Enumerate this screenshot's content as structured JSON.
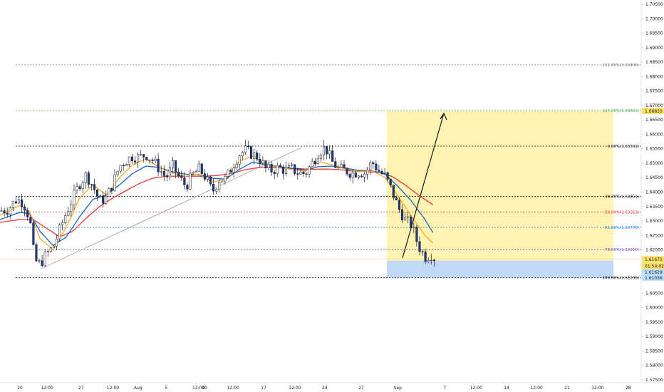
{
  "chart_data": {
    "type": "candlestick",
    "ylim": [
      1.575,
      1.705
    ],
    "y_ticks": [
      "1.70500",
      "1.70000",
      "1.69500",
      "1.69000",
      "1.68500",
      "1.68000",
      "1.67500",
      "1.67000",
      "1.66500",
      "1.66000",
      "1.65500",
      "1.65000",
      "1.64500",
      "1.64000",
      "1.63500",
      "1.63000",
      "1.62500",
      "1.62000",
      "1.61500",
      "1.61000",
      "1.60500",
      "1.60000",
      "1.59500",
      "1.59000",
      "1.58500",
      "1.58000",
      "1.57500"
    ],
    "x_ticks": [
      {
        "label": "20",
        "x": 0.03
      },
      {
        "label": "12:00",
        "x": 0.071
      },
      {
        "label": "27",
        "x": 0.122
      },
      {
        "label": "12:00",
        "x": 0.17
      },
      {
        "label": "Aug",
        "x": 0.208
      },
      {
        "label": "5",
        "x": 0.25
      },
      {
        "label": "12:00",
        "x": 0.299
      },
      {
        "label": "10",
        "x": 0.308
      },
      {
        "label": "12:00",
        "x": 0.351
      },
      {
        "label": "17",
        "x": 0.397
      },
      {
        "label": "12:00",
        "x": 0.444
      },
      {
        "label": "24",
        "x": 0.489
      },
      {
        "label": "27",
        "x": 0.544
      },
      {
        "label": "Sep",
        "x": 0.599
      },
      {
        "label": "7",
        "x": 0.67
      },
      {
        "label": "12:00",
        "x": 0.717
      },
      {
        "label": "14",
        "x": 0.763
      },
      {
        "label": "12:00",
        "x": 0.808
      },
      {
        "label": "21",
        "x": 0.854
      },
      {
        "label": "12:00",
        "x": 0.9
      },
      {
        "label": "28",
        "x": 0.946
      }
    ],
    "fib_levels": [
      {
        "label": "161.80%(1.68406)",
        "value": 1.68406,
        "color": "#787b86"
      },
      {
        "label": "127.00%(1.66821)",
        "value": 1.66821,
        "color": "#4caf50"
      },
      {
        "label": "0.00%(1.65591)",
        "value": 1.65591,
        "color": "#131722"
      },
      {
        "label": "38.20%(1.63851)",
        "value": 1.63851,
        "color": "#131722"
      },
      {
        "label": "50.00%(1.63313)",
        "value": 1.63313,
        "color": "#e53935"
      },
      {
        "label": "61.80%(1.62776)",
        "value": 1.62776,
        "color": "#1e88e5"
      },
      {
        "label": "78.60%(1.62010)",
        "value": 1.6201,
        "color": "#7e57c2"
      },
      {
        "label": "100.00%(1.61035)",
        "value": 1.61035,
        "color": "#131722"
      }
    ],
    "price_badges": [
      {
        "label": "1.66810",
        "value": 1.6681,
        "bg": "#ffe066"
      },
      {
        "label": "1.61675",
        "value": 1.61675,
        "bg": "#ffe066"
      },
      {
        "label": "01:54:02",
        "value": 1.61445,
        "bg": "#ffe066"
      },
      {
        "label": "1.61629",
        "value": 1.61225,
        "bg": "#bbdefb"
      },
      {
        "label": "1.61036",
        "value": 1.61036,
        "bg": "#bbdefb"
      }
    ],
    "projection": {
      "entry": 1.61629,
      "target": 1.6681,
      "stop": 1.61036
    },
    "candle_profile": [
      [
        0.0,
        1.6335
      ],
      [
        0.012,
        1.634
      ],
      [
        0.025,
        1.6375
      ],
      [
        0.035,
        1.6365
      ],
      [
        0.045,
        1.6305
      ],
      [
        0.052,
        1.6165
      ],
      [
        0.06,
        1.615
      ],
      [
        0.07,
        1.6185
      ],
      [
        0.08,
        1.621
      ],
      [
        0.09,
        1.627
      ],
      [
        0.1,
        1.633
      ],
      [
        0.11,
        1.638
      ],
      [
        0.12,
        1.643
      ],
      [
        0.13,
        1.646
      ],
      [
        0.14,
        1.642
      ],
      [
        0.15,
        1.637
      ],
      [
        0.16,
        1.638
      ],
      [
        0.17,
        1.643
      ],
      [
        0.18,
        1.649
      ],
      [
        0.19,
        1.651
      ],
      [
        0.2,
        1.6525
      ],
      [
        0.21,
        1.652
      ],
      [
        0.22,
        1.653
      ],
      [
        0.23,
        1.651
      ],
      [
        0.24,
        1.648
      ],
      [
        0.25,
        1.645
      ],
      [
        0.26,
        1.649
      ],
      [
        0.27,
        1.645
      ],
      [
        0.28,
        1.642
      ],
      [
        0.29,
        1.646
      ],
      [
        0.3,
        1.648
      ],
      [
        0.31,
        1.645
      ],
      [
        0.32,
        1.64
      ],
      [
        0.33,
        1.6445
      ],
      [
        0.34,
        1.6445
      ],
      [
        0.35,
        1.649
      ],
      [
        0.36,
        1.653
      ],
      [
        0.37,
        1.6545
      ],
      [
        0.38,
        1.653
      ],
      [
        0.39,
        1.652
      ],
      [
        0.4,
        1.648
      ],
      [
        0.41,
        1.6475
      ],
      [
        0.42,
        1.6485
      ],
      [
        0.43,
        1.6475
      ],
      [
        0.44,
        1.648
      ],
      [
        0.45,
        1.6465
      ],
      [
        0.46,
        1.6465
      ],
      [
        0.47,
        1.65
      ],
      [
        0.48,
        1.654
      ],
      [
        0.49,
        1.6555
      ],
      [
        0.5,
        1.6505
      ],
      [
        0.51,
        1.648
      ],
      [
        0.52,
        1.6475
      ],
      [
        0.53,
        1.6465
      ],
      [
        0.54,
        1.647
      ],
      [
        0.55,
        1.6465
      ],
      [
        0.56,
        1.6505
      ],
      [
        0.57,
        1.6475
      ],
      [
        0.58,
        1.6455
      ],
      [
        0.59,
        1.6405
      ],
      [
        0.6,
        1.6345
      ],
      [
        0.61,
        1.6305
      ],
      [
        0.62,
        1.6285
      ],
      [
        0.63,
        1.6215
      ],
      [
        0.64,
        1.6175
      ],
      [
        0.65,
        1.6185
      ],
      [
        0.656,
        1.6165
      ]
    ],
    "ma_fast_profile": [
      [
        0.0,
        1.632
      ],
      [
        0.03,
        1.6355
      ],
      [
        0.045,
        1.633
      ],
      [
        0.06,
        1.624
      ],
      [
        0.08,
        1.62
      ],
      [
        0.1,
        1.628
      ],
      [
        0.12,
        1.638
      ],
      [
        0.14,
        1.6425
      ],
      [
        0.16,
        1.639
      ],
      [
        0.18,
        1.645
      ],
      [
        0.2,
        1.6495
      ],
      [
        0.22,
        1.6515
      ],
      [
        0.24,
        1.6485
      ],
      [
        0.26,
        1.6465
      ],
      [
        0.28,
        1.6455
      ],
      [
        0.3,
        1.6462
      ],
      [
        0.32,
        1.6435
      ],
      [
        0.34,
        1.6445
      ],
      [
        0.36,
        1.6505
      ],
      [
        0.38,
        1.6525
      ],
      [
        0.4,
        1.6495
      ],
      [
        0.42,
        1.6485
      ],
      [
        0.44,
        1.6478
      ],
      [
        0.46,
        1.6472
      ],
      [
        0.48,
        1.6505
      ],
      [
        0.5,
        1.6495
      ],
      [
        0.52,
        1.648
      ],
      [
        0.54,
        1.647
      ],
      [
        0.56,
        1.6475
      ],
      [
        0.58,
        1.645
      ],
      [
        0.6,
        1.6385
      ],
      [
        0.62,
        1.6315
      ],
      [
        0.64,
        1.625
      ],
      [
        0.656,
        1.6215
      ]
    ],
    "ma_mid_profile": [
      [
        0.0,
        1.6305
      ],
      [
        0.03,
        1.633
      ],
      [
        0.045,
        1.6325
      ],
      [
        0.06,
        1.6265
      ],
      [
        0.08,
        1.6215
      ],
      [
        0.1,
        1.6245
      ],
      [
        0.12,
        1.6315
      ],
      [
        0.14,
        1.6375
      ],
      [
        0.16,
        1.639
      ],
      [
        0.18,
        1.6425
      ],
      [
        0.2,
        1.6465
      ],
      [
        0.22,
        1.649
      ],
      [
        0.24,
        1.6485
      ],
      [
        0.26,
        1.647
      ],
      [
        0.28,
        1.6462
      ],
      [
        0.3,
        1.646
      ],
      [
        0.32,
        1.6448
      ],
      [
        0.34,
        1.6445
      ],
      [
        0.36,
        1.6478
      ],
      [
        0.38,
        1.6503
      ],
      [
        0.4,
        1.6495
      ],
      [
        0.42,
        1.6488
      ],
      [
        0.44,
        1.6482
      ],
      [
        0.46,
        1.6476
      ],
      [
        0.48,
        1.6488
      ],
      [
        0.5,
        1.649
      ],
      [
        0.52,
        1.6483
      ],
      [
        0.54,
        1.6475
      ],
      [
        0.56,
        1.6474
      ],
      [
        0.58,
        1.6462
      ],
      [
        0.6,
        1.6418
      ],
      [
        0.62,
        1.6368
      ],
      [
        0.64,
        1.6305
      ],
      [
        0.656,
        1.6245
      ]
    ],
    "ma_slow_profile": [
      [
        0.0,
        1.6295
      ],
      [
        0.03,
        1.6305
      ],
      [
        0.05,
        1.6305
      ],
      [
        0.07,
        1.6275
      ],
      [
        0.09,
        1.6245
      ],
      [
        0.11,
        1.6265
      ],
      [
        0.13,
        1.631
      ],
      [
        0.15,
        1.635
      ],
      [
        0.17,
        1.638
      ],
      [
        0.19,
        1.6405
      ],
      [
        0.21,
        1.643
      ],
      [
        0.23,
        1.6448
      ],
      [
        0.25,
        1.6455
      ],
      [
        0.27,
        1.6455
      ],
      [
        0.29,
        1.6455
      ],
      [
        0.31,
        1.6455
      ],
      [
        0.33,
        1.6458
      ],
      [
        0.35,
        1.6465
      ],
      [
        0.37,
        1.6478
      ],
      [
        0.39,
        1.6485
      ],
      [
        0.41,
        1.6485
      ],
      [
        0.43,
        1.6483
      ],
      [
        0.45,
        1.6481
      ],
      [
        0.47,
        1.6479
      ],
      [
        0.49,
        1.648
      ],
      [
        0.51,
        1.6478
      ],
      [
        0.53,
        1.6473
      ],
      [
        0.55,
        1.6471
      ],
      [
        0.57,
        1.6468
      ],
      [
        0.59,
        1.6455
      ],
      [
        0.61,
        1.6425
      ],
      [
        0.63,
        1.639
      ],
      [
        0.656,
        1.635
      ]
    ]
  }
}
